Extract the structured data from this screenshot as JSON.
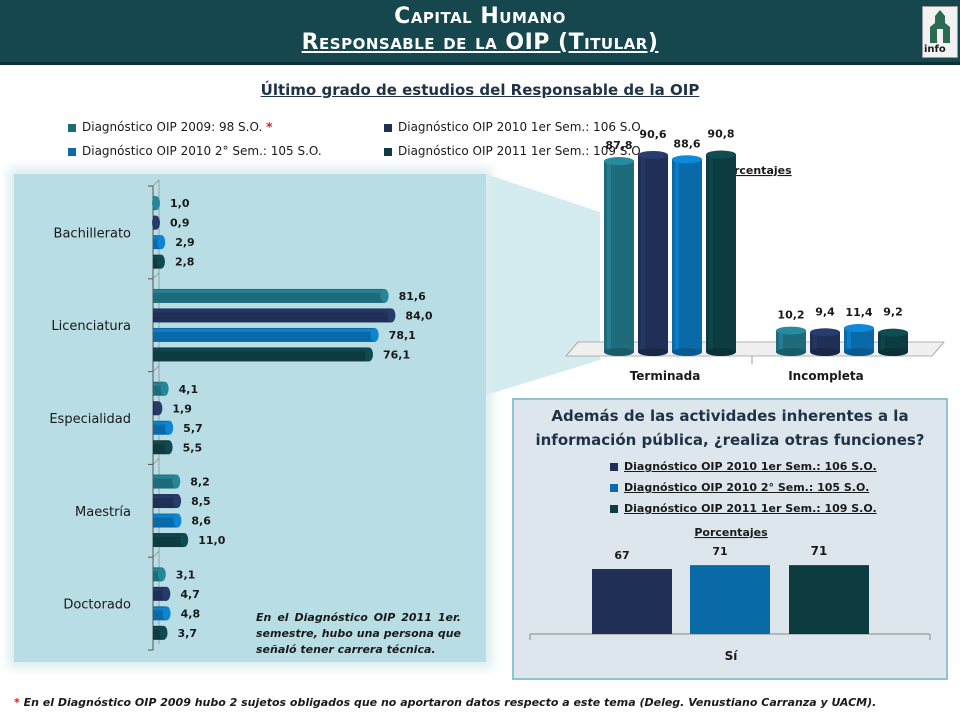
{
  "header": {
    "title_line1": "Capital Humano",
    "title_line2": "Responsable de la OIP (Titular)",
    "logo_text": "info"
  },
  "subtitle": "Último grado de estudios del Responsable de la OIP",
  "legend_top": [
    {
      "label": "Diagnóstico OIP 2009: 98 S.O.",
      "marker": "*",
      "color": "#1e6b7b"
    },
    {
      "label": "Diagnóstico OIP 2010 1er Sem.: 106 S.O.",
      "color": "#1f2f55"
    },
    {
      "label": "Diagnóstico OIP 2010 2° Sem.: 105 S.O.",
      "color": "#0a6aa8"
    },
    {
      "label": "Diagnóstico OIP 2011 1er Sem.: 109 S.O.",
      "color": "#0c3b40"
    }
  ],
  "note": "En el Diagnóstico OIP 2011 1er. semestre, hubo una persona que señaló tener carrera técnica.",
  "question_title_line1": "Además de las actividades inherentes a la",
  "question_title_line2": "información pública, ¿realiza otras funciones?",
  "legend_question": [
    {
      "label": "Diagnóstico OIP 2010 1er Sem.: 106 S.O.",
      "color": "#1f2f55"
    },
    {
      "label": "Diagnóstico OIP 2010 2° Sem.: 105 S.O.",
      "color": "#0a6aa8"
    },
    {
      "label": "Diagnóstico OIP 2011 1er Sem.: 109 S.O.",
      "color": "#0c3b40"
    }
  ],
  "footnote_marker": "*",
  "footnote": "En el Diagnóstico OIP 2009  hubo 2 sujetos obligados que no aportaron datos respecto a este tema (Deleg. Venustiano Carranza y UACM).",
  "chart_data": [
    {
      "type": "bar",
      "orientation": "horizontal",
      "title": "",
      "categories": [
        "Bachillerato",
        "Licenciatura",
        "Especialidad",
        "Maestría",
        "Doctorado"
      ],
      "series": [
        {
          "name": "Diagnóstico OIP 2009: 98 S.O.",
          "values": [
            1.0,
            81.6,
            4.1,
            8.2,
            3.1
          ],
          "labels": [
            "1,0",
            "81,6",
            "4,1",
            "8,2",
            "3,1"
          ],
          "color": "#1e6b7b"
        },
        {
          "name": "Diagnóstico OIP 2010 1er Sem.: 106 S.O.",
          "values": [
            0.9,
            84.0,
            1.9,
            8.5,
            4.7
          ],
          "labels": [
            "0,9",
            "84,0",
            "1,9",
            "8,5",
            "4,7"
          ],
          "color": "#1f2f55"
        },
        {
          "name": "Diagnóstico OIP 2010 2° Sem.: 105 S.O.",
          "values": [
            2.9,
            78.1,
            5.7,
            8.6,
            4.8
          ],
          "labels": [
            "2,9",
            "78,1",
            "5,7",
            "8,6",
            "4,8"
          ],
          "color": "#0a6aa8"
        },
        {
          "name": "Diagnóstico OIP 2011 1er Sem.: 109 S.O.",
          "values": [
            2.8,
            76.1,
            5.5,
            11.0,
            3.7
          ],
          "labels": [
            "2,8",
            "76,1",
            "5,5",
            "11,0",
            "3,7"
          ],
          "color": "#0c3b40"
        }
      ],
      "xlim": [
        0,
        100
      ],
      "grid": false,
      "legend": "top"
    },
    {
      "type": "bar",
      "title": "Porcentajes",
      "categories": [
        "Terminada",
        "Incompleta"
      ],
      "series": [
        {
          "name": "Diagnóstico OIP 2009: 98 S.O.",
          "values": [
            87.8,
            10.2
          ],
          "labels": [
            "87,8",
            "10,2"
          ],
          "color": "#1e6b7b"
        },
        {
          "name": "Diagnóstico OIP 2010 1er Sem.: 106 S.O.",
          "values": [
            90.6,
            9.4
          ],
          "labels": [
            "90,6",
            "9,4"
          ],
          "color": "#1f2f55"
        },
        {
          "name": "Diagnóstico OIP 2010 2° Sem.: 105 S.O.",
          "values": [
            88.6,
            11.4
          ],
          "labels": [
            "88,6",
            "11,4"
          ],
          "color": "#0a6aa8"
        },
        {
          "name": "Diagnóstico OIP 2011 1er Sem.: 109 S.O.",
          "values": [
            90.8,
            9.2
          ],
          "labels": [
            "90,8",
            "9,2"
          ],
          "color": "#0c3b40"
        }
      ],
      "ylim": [
        0,
        100
      ],
      "grid": false
    },
    {
      "type": "bar",
      "title": "Porcentajes",
      "categories": [
        "Sí"
      ],
      "series": [
        {
          "name": "Diagnóstico OIP 2010 1er Sem.: 106 S.O.",
          "values": [
            67
          ],
          "labels": [
            "67"
          ],
          "color": "#1f2f55"
        },
        {
          "name": "Diagnóstico OIP 2010 2° Sem.: 105 S.O.",
          "values": [
            71
          ],
          "labels": [
            "71"
          ],
          "color": "#0a6aa8"
        },
        {
          "name": "Diagnóstico OIP 2011 1er Sem.: 109 S.O.",
          "values": [
            71
          ],
          "labels": [
            "71"
          ],
          "color": "#0c3b40"
        }
      ],
      "ylim": [
        0,
        100
      ],
      "grid": false
    }
  ]
}
